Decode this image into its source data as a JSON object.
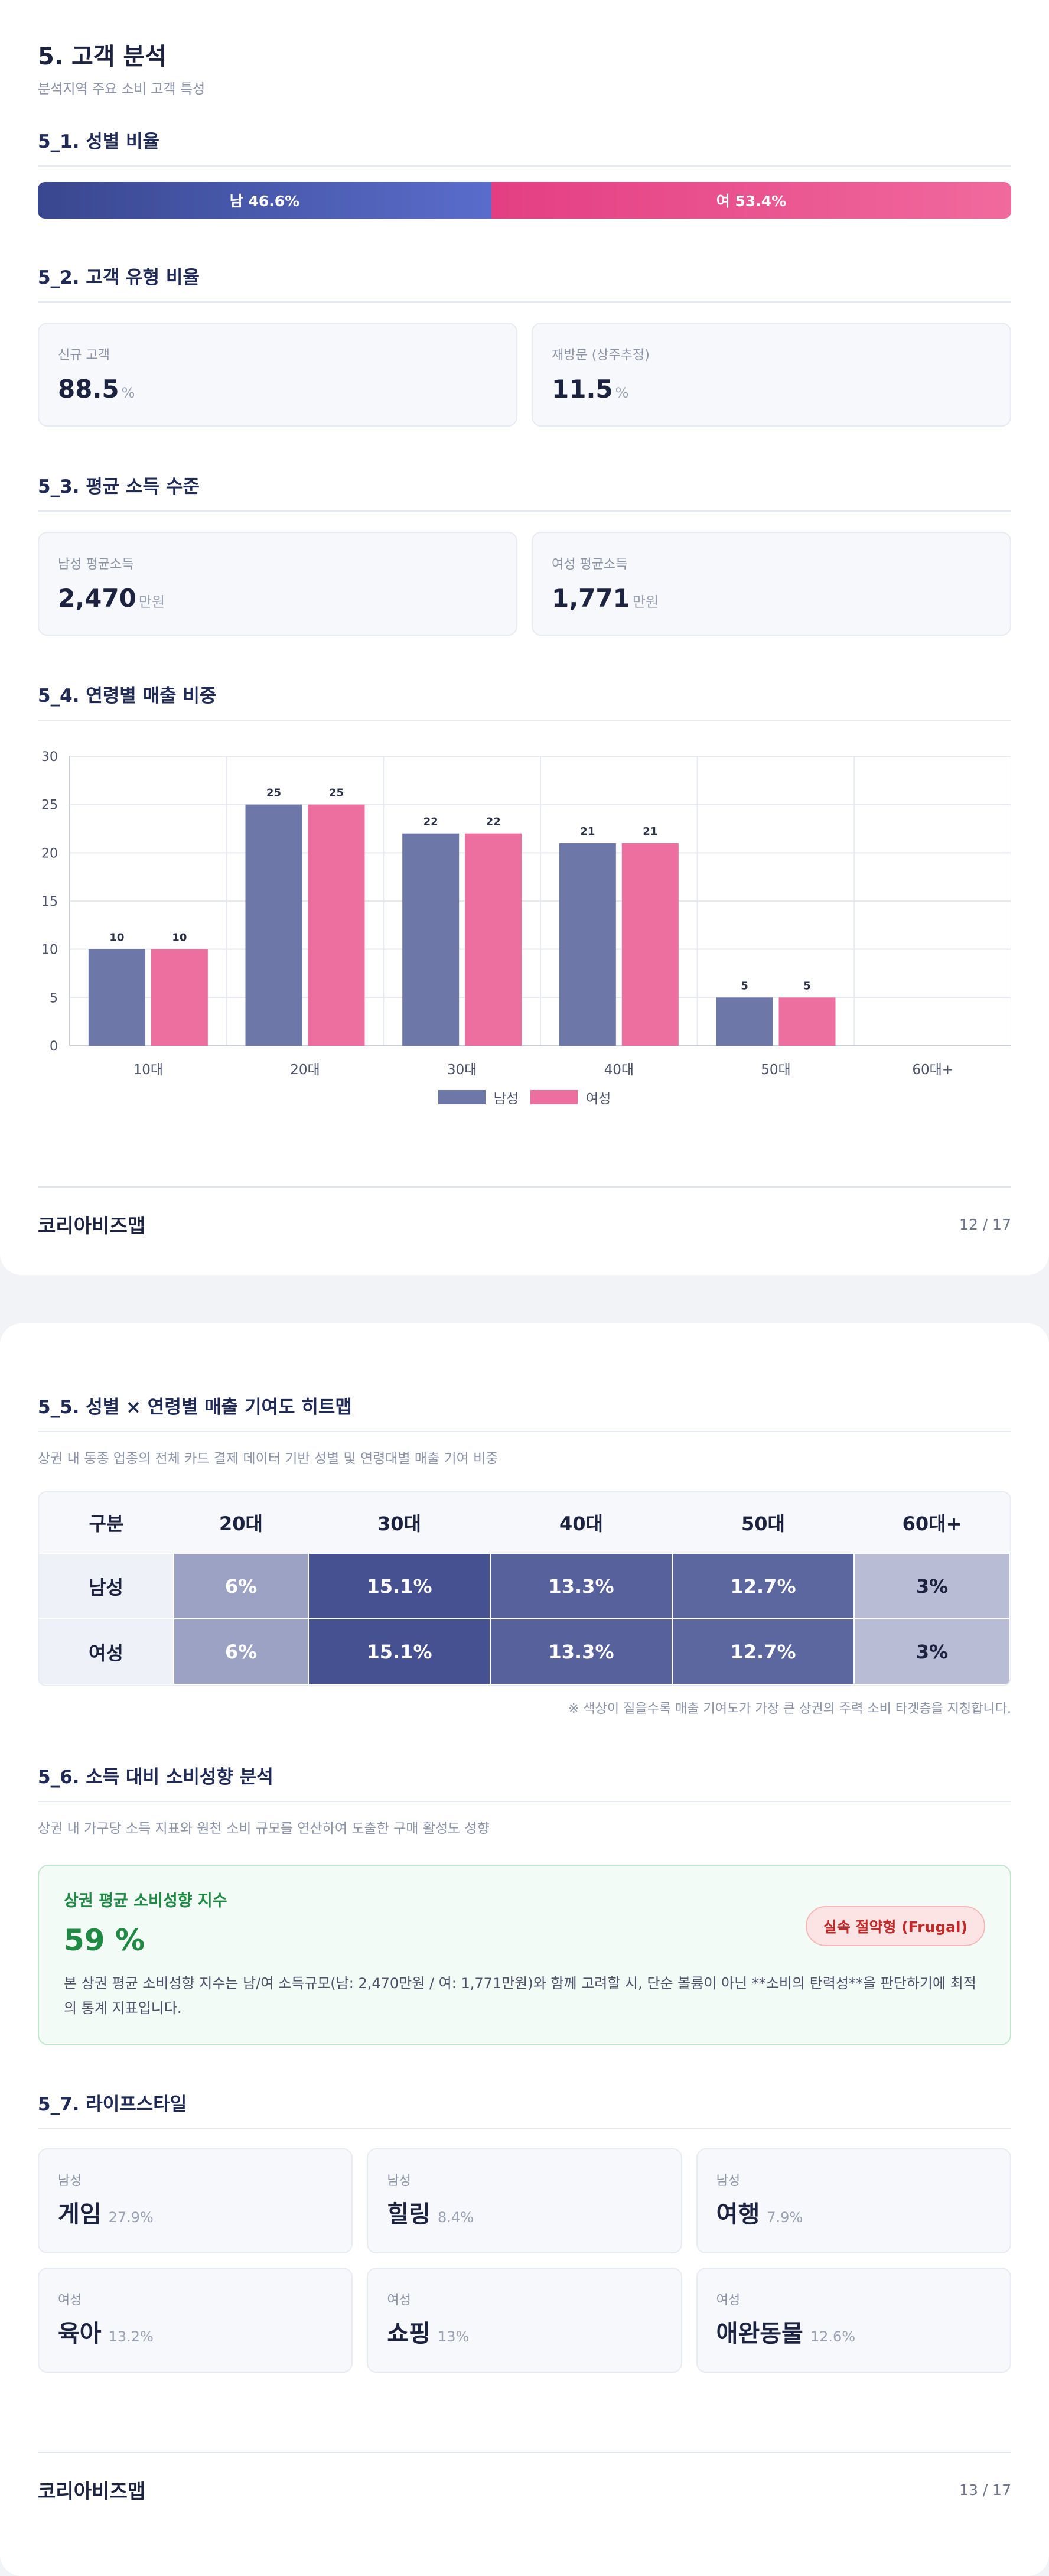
{
  "page1": {
    "title": "5. 고객 분석",
    "subtitle": "분석지역 주요 소비 고객 특성",
    "gender": {
      "title": "5_1. 성별 비율",
      "male_label": "남 46.6%",
      "female_label": "여 53.4%",
      "male_pct": 46.6,
      "female_pct": 53.4,
      "colors": {
        "male": "#4a58ad",
        "female": "#e94d8c"
      }
    },
    "customer_type": {
      "title": "5_2. 고객 유형 비율",
      "cards": [
        {
          "label": "신규 고객",
          "value": "88.5",
          "unit": "%"
        },
        {
          "label": "재방문 (상주추정)",
          "value": "11.5",
          "unit": "%"
        }
      ]
    },
    "income": {
      "title": "5_3. 평균 소득 수준",
      "cards": [
        {
          "label": "남성 평균소득",
          "value": "2,470",
          "unit": "만원"
        },
        {
          "label": "여성 평균소득",
          "value": "1,771",
          "unit": "만원"
        }
      ]
    },
    "age_sales": {
      "title": "5_4. 연령별 매출 비중"
    },
    "footer": {
      "brand": "코리아비즈맵",
      "page": "12 / 17"
    }
  },
  "chart_data": {
    "type": "bar",
    "categories": [
      "10대",
      "20대",
      "30대",
      "40대",
      "50대",
      "60대+"
    ],
    "series": [
      {
        "name": "남성",
        "values": [
          10,
          25,
          22,
          21,
          5,
          0
        ],
        "color": "#6e78a8"
      },
      {
        "name": "여성",
        "values": [
          10,
          25,
          22,
          21,
          5,
          0
        ],
        "color": "#ec6fa0"
      }
    ],
    "data_labels": [
      [
        "10",
        "25",
        "22",
        "21",
        "5",
        ""
      ],
      [
        "10",
        "25",
        "22",
        "21",
        "5",
        ""
      ]
    ],
    "ylim": [
      0,
      30
    ],
    "yticks": [
      0,
      5,
      10,
      15,
      20,
      25,
      30
    ],
    "grid": true,
    "legend": "bottom"
  },
  "page2": {
    "heatmap": {
      "title": "5_5. 성별 × 연령별 매출 기여도 히트맵",
      "desc": "상권 내 동종 업종의 전체 카드 결제 데이터 기반 성별 및 연령대별 매출 기여 비중",
      "columns": [
        "구분",
        "20대",
        "30대",
        "40대",
        "50대",
        "60대+"
      ],
      "rows": [
        {
          "label": "남성",
          "cells": [
            "6%",
            "15.1%",
            "13.3%",
            "12.7%",
            "3%"
          ],
          "values": [
            6,
            15.1,
            13.3,
            12.7,
            3
          ]
        },
        {
          "label": "여성",
          "cells": [
            "6%",
            "15.1%",
            "13.3%",
            "12.7%",
            "3%"
          ],
          "values": [
            6,
            15.1,
            13.3,
            12.7,
            3
          ]
        }
      ],
      "note": "※ 색상이 짙을수록 매출 기여도가 가장 큰 상권의 주력 소비 타겟층을 지칭합니다."
    },
    "spending": {
      "title": "5_6. 소득 대비 소비성향 분석",
      "desc": "상권 내 가구당 소득 지표와 원천 소비 규모를 연산하여 도출한 구매 활성도 성향",
      "box_title": "상권 평균 소비성향 지수",
      "box_value": "59 %",
      "badge": "실속 절약형 (Frugal)",
      "box_desc": "본 상권 평균 소비성향 지수는 남/여 소득규모(남: 2,470만원 / 여: 1,771만원)와 함께 고려할 시, 단순 볼륨이 아닌 **소비의 탄력성**을 판단하기에 최적의 통계 지표입니다."
    },
    "lifestyle": {
      "title": "5_7. 라이프스타일",
      "cards": [
        {
          "gender": "남성",
          "name": "게임",
          "pct": "27.9%"
        },
        {
          "gender": "남성",
          "name": "힐링",
          "pct": "8.4%"
        },
        {
          "gender": "남성",
          "name": "여행",
          "pct": "7.9%"
        },
        {
          "gender": "여성",
          "name": "육아",
          "pct": "13.2%"
        },
        {
          "gender": "여성",
          "name": "쇼핑",
          "pct": "13%"
        },
        {
          "gender": "여성",
          "name": "애완동물",
          "pct": "12.6%"
        }
      ]
    },
    "footer": {
      "brand": "코리아비즈맵",
      "page": "13 / 17"
    }
  }
}
